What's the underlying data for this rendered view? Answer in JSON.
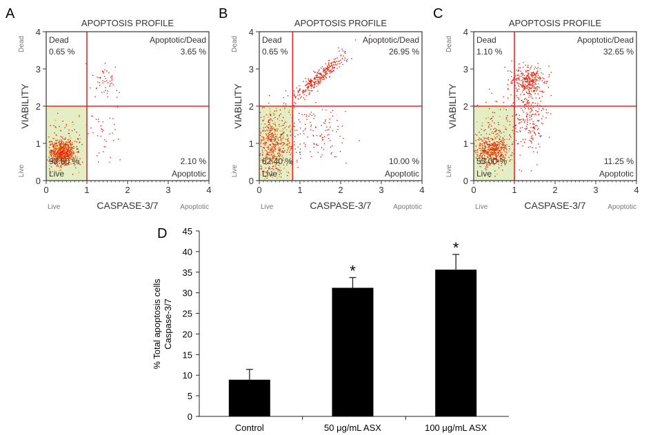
{
  "chart_data": [
    {
      "type": "scatter",
      "panel_label": "A",
      "title": "APOPTOSIS PROFILE",
      "xlabel": "CASPASE-3/7",
      "xlabel_low": "Live",
      "xlabel_high": "Apoptotic",
      "ylabel": "VIABILITY",
      "ylabel_low": "Live",
      "ylabel_high": "Dead",
      "xlim": [
        0,
        4
      ],
      "ylim": [
        0,
        4
      ],
      "x_ticks": [
        "0",
        "1",
        "2",
        "3",
        "4"
      ],
      "y_ticks": [
        "0",
        "1",
        "2",
        "3",
        "4"
      ],
      "gates": {
        "x": 1.0,
        "y": 2.0
      },
      "quadrants": {
        "dead": {
          "label": "Dead",
          "value": "0.65 %"
        },
        "apoptotic_dead": {
          "label": "Apoptotic/Dead",
          "value": "3.65 %"
        },
        "live": {
          "label": "Live",
          "value": "93.60 %"
        },
        "apoptotic": {
          "label": "Apoptotic",
          "value": "2.10 %"
        }
      },
      "point_clusters": [
        {
          "cx": 0.4,
          "cy": 0.75,
          "sx": 0.15,
          "sy": 0.15,
          "n": 700
        },
        {
          "cx": 0.4,
          "cy": 0.9,
          "sx": 0.25,
          "sy": 0.4,
          "n": 120
        },
        {
          "cx": 1.4,
          "cy": 2.65,
          "sx": 0.2,
          "sy": 0.2,
          "n": 50
        },
        {
          "cx": 1.4,
          "cy": 1.3,
          "sx": 0.25,
          "sy": 0.4,
          "n": 40
        }
      ]
    },
    {
      "type": "scatter",
      "panel_label": "B",
      "title": "APOPTOSIS PROFILE",
      "xlabel": "CASPASE-3/7",
      "xlabel_low": "Live",
      "xlabel_high": "Apoptotic",
      "ylabel": "VIABILITY",
      "ylabel_low": "Live",
      "ylabel_high": "Dead",
      "xlim": [
        0,
        4
      ],
      "ylim": [
        0,
        4
      ],
      "x_ticks": [
        "0",
        "1",
        "2",
        "3",
        "4"
      ],
      "y_ticks": [
        "0",
        "1",
        "2",
        "3",
        "4"
      ],
      "gates": {
        "x": 0.82,
        "y": 2.0
      },
      "quadrants": {
        "dead": {
          "label": "Dead",
          "value": "0.65 %"
        },
        "apoptotic_dead": {
          "label": "Apoptotic/Dead",
          "value": "26.95 %"
        },
        "live": {
          "label": "Live",
          "value": "62.40 %"
        },
        "apoptotic": {
          "label": "Apoptotic",
          "value": "10.00 %"
        }
      },
      "point_clusters": [
        {
          "cx": 0.35,
          "cy": 0.95,
          "sx": 0.25,
          "sy": 0.45,
          "n": 600
        },
        {
          "cx": 1.45,
          "cy": 2.75,
          "sx": 0.35,
          "sy": 0.3,
          "n": 300,
          "diag": true
        },
        {
          "cx": 1.3,
          "cy": 1.3,
          "sx": 0.35,
          "sy": 0.4,
          "n": 120
        }
      ]
    },
    {
      "type": "scatter",
      "panel_label": "C",
      "title": "APOPTOSIS PROFILE",
      "xlabel": "CASPASE-3/7",
      "xlabel_low": "Live",
      "xlabel_high": "Apoptotic",
      "ylabel": "VIABILITY",
      "ylabel_low": "Live",
      "ylabel_high": "Dead",
      "xlim": [
        0,
        4
      ],
      "ylim": [
        0,
        4
      ],
      "x_ticks": [
        "0",
        "1",
        "2",
        "3",
        "4"
      ],
      "y_ticks": [
        "0",
        "1",
        "2",
        "3",
        "4"
      ],
      "gates": {
        "x": 1.0,
        "y": 2.0
      },
      "quadrants": {
        "dead": {
          "label": "Dead",
          "value": "1.10 %"
        },
        "apoptotic_dead": {
          "label": "Apoptotic/Dead",
          "value": "32.65 %"
        },
        "live": {
          "label": "Live",
          "value": "55.00 %"
        },
        "apoptotic": {
          "label": "Apoptotic",
          "value": "11.25 %"
        }
      },
      "point_clusters": [
        {
          "cx": 0.45,
          "cy": 0.8,
          "sx": 0.2,
          "sy": 0.2,
          "n": 450
        },
        {
          "cx": 0.6,
          "cy": 1.2,
          "sx": 0.3,
          "sy": 0.45,
          "n": 180
        },
        {
          "cx": 1.35,
          "cy": 2.65,
          "sx": 0.2,
          "sy": 0.2,
          "n": 300
        },
        {
          "cx": 1.4,
          "cy": 1.8,
          "sx": 0.2,
          "sy": 0.45,
          "n": 200
        }
      ]
    },
    {
      "type": "bar",
      "panel_label": "D",
      "categories": [
        "Control",
        "50 μg/mL ASX",
        "100 μg/mL ASX"
      ],
      "values": [
        8.9,
        31.2,
        35.6
      ],
      "error_upper": [
        2.5,
        2.5,
        3.7
      ],
      "significance": [
        "",
        "*",
        "*"
      ],
      "ylabel": [
        "% Total apoptosis cells",
        "Caspase-3/7"
      ],
      "ylim": [
        0,
        45
      ],
      "y_ticks": [
        "0",
        "5",
        "10",
        "15",
        "20",
        "25",
        "30",
        "35",
        "40",
        "45"
      ],
      "bar_color": "#000000"
    }
  ],
  "colors": {
    "gate": "#e8262a",
    "point": "#e8200c",
    "live_fill": "#e4eec4"
  }
}
